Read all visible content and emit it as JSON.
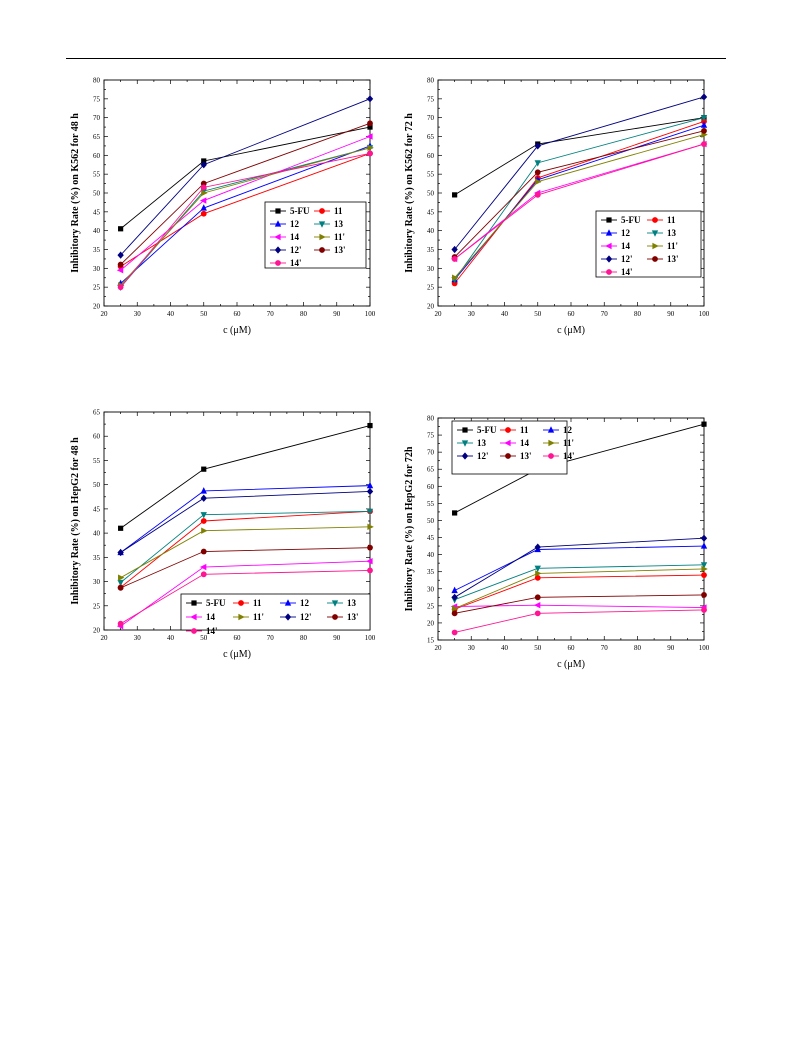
{
  "chart_data": [
    {
      "type": "line",
      "ylabel": "Inhibitory Rate (%) on K562 for 48 h",
      "xlabel": "c (μM)",
      "xlim": [
        20,
        100
      ],
      "ylim": [
        20,
        80
      ],
      "xticks": [
        20,
        30,
        40,
        50,
        60,
        70,
        80,
        90,
        100
      ],
      "yticks": [
        20,
        25,
        30,
        35,
        40,
        45,
        50,
        55,
        60,
        65,
        70,
        75,
        80
      ],
      "x": [
        25,
        50,
        100
      ],
      "legend_columns": 2,
      "series": [
        {
          "name": "5-FU",
          "color": "#000000",
          "marker": "square",
          "values": [
            40.5,
            58.5,
            67.5
          ]
        },
        {
          "name": "11",
          "color": "#ff0000",
          "marker": "circle",
          "values": [
            30.5,
            44.5,
            60.5
          ]
        },
        {
          "name": "12",
          "color": "#0000ff",
          "marker": "triangle-up",
          "values": [
            26.0,
            46.0,
            62.5
          ]
        },
        {
          "name": "13",
          "color": "#008080",
          "marker": "triangle-down",
          "values": [
            25.0,
            50.5,
            62.0
          ]
        },
        {
          "name": "14",
          "color": "#ff00ff",
          "marker": "triangle-left",
          "values": [
            29.5,
            48.0,
            65.0
          ]
        },
        {
          "name": "11'",
          "color": "#808000",
          "marker": "triangle-right",
          "values": [
            25.5,
            50.0,
            62.0
          ]
        },
        {
          "name": "12'",
          "color": "#000080",
          "marker": "diamond",
          "values": [
            33.5,
            57.5,
            75.0
          ]
        },
        {
          "name": "13'",
          "color": "#800000",
          "marker": "circle",
          "values": [
            31.0,
            52.5,
            68.5
          ]
        },
        {
          "name": "14'",
          "color": "#ff1493",
          "marker": "circle",
          "values": [
            25.0,
            51.5,
            60.5
          ]
        }
      ]
    },
    {
      "type": "line",
      "ylabel": "Inhibitory Rate (%) on K562 for 72 h",
      "xlabel": "c (μM)",
      "xlim": [
        20,
        100
      ],
      "ylim": [
        20,
        80
      ],
      "xticks": [
        20,
        30,
        40,
        50,
        60,
        70,
        80,
        90,
        100
      ],
      "yticks": [
        20,
        25,
        30,
        35,
        40,
        45,
        50,
        55,
        60,
        65,
        70,
        75,
        80
      ],
      "x": [
        25,
        50,
        100
      ],
      "legend_columns": 2,
      "series": [
        {
          "name": "5-FU",
          "color": "#000000",
          "marker": "square",
          "values": [
            49.5,
            63.0,
            70.0
          ]
        },
        {
          "name": "11",
          "color": "#ff0000",
          "marker": "circle",
          "values": [
            26.0,
            54.0,
            69.0
          ]
        },
        {
          "name": "12",
          "color": "#0000ff",
          "marker": "triangle-up",
          "values": [
            27.0,
            53.5,
            68.0
          ]
        },
        {
          "name": "13",
          "color": "#008080",
          "marker": "triangle-down",
          "values": [
            27.0,
            58.0,
            70.0
          ]
        },
        {
          "name": "14",
          "color": "#ff00ff",
          "marker": "triangle-left",
          "values": [
            32.5,
            50.0,
            63.0
          ]
        },
        {
          "name": "11'",
          "color": "#808000",
          "marker": "triangle-right",
          "values": [
            27.5,
            53.0,
            65.5
          ]
        },
        {
          "name": "12'",
          "color": "#000080",
          "marker": "diamond",
          "values": [
            35.0,
            62.5,
            75.5
          ]
        },
        {
          "name": "13'",
          "color": "#800000",
          "marker": "circle",
          "values": [
            33.0,
            55.5,
            66.5
          ]
        },
        {
          "name": "14'",
          "color": "#ff1493",
          "marker": "circle",
          "values": [
            32.5,
            49.5,
            63.0
          ]
        }
      ]
    },
    {
      "type": "line",
      "ylabel": "Inhibitory Rate (%) on HepG2 for 48 h",
      "xlabel": "c (μM)",
      "xlim": [
        20,
        100
      ],
      "ylim": [
        20,
        65
      ],
      "xticks": [
        20,
        30,
        40,
        50,
        60,
        70,
        80,
        90,
        100
      ],
      "yticks": [
        20,
        25,
        30,
        35,
        40,
        45,
        50,
        55,
        60,
        65
      ],
      "x": [
        25,
        50,
        100
      ],
      "legend_columns": 4,
      "series": [
        {
          "name": "5-FU",
          "color": "#000000",
          "marker": "square",
          "values": [
            41.0,
            53.2,
            62.2
          ]
        },
        {
          "name": "11",
          "color": "#ff0000",
          "marker": "circle",
          "values": [
            28.8,
            42.5,
            44.5
          ]
        },
        {
          "name": "12",
          "color": "#0000ff",
          "marker": "triangle-up",
          "values": [
            36.0,
            48.7,
            49.8
          ]
        },
        {
          "name": "13",
          "color": "#008080",
          "marker": "triangle-down",
          "values": [
            29.8,
            43.8,
            44.5
          ]
        },
        {
          "name": "14",
          "color": "#ff00ff",
          "marker": "triangle-left",
          "values": [
            20.8,
            33.0,
            34.2
          ]
        },
        {
          "name": "11'",
          "color": "#808000",
          "marker": "triangle-right",
          "values": [
            30.8,
            40.5,
            41.3
          ]
        },
        {
          "name": "12'",
          "color": "#000080",
          "marker": "diamond",
          "values": [
            36.0,
            47.2,
            48.6
          ]
        },
        {
          "name": "13'",
          "color": "#800000",
          "marker": "circle",
          "values": [
            28.7,
            36.2,
            37.0
          ]
        },
        {
          "name": "14'",
          "color": "#ff1493",
          "marker": "circle",
          "values": [
            21.3,
            31.5,
            32.3
          ]
        }
      ]
    },
    {
      "type": "line",
      "ylabel": "Inhibitory Rate (%) on HepG2 for 72h",
      "xlabel": "c (μM)",
      "xlim": [
        20,
        100
      ],
      "ylim": [
        15,
        80
      ],
      "xticks": [
        20,
        30,
        40,
        50,
        60,
        70,
        80,
        90,
        100
      ],
      "yticks": [
        15,
        20,
        25,
        30,
        35,
        40,
        45,
        50,
        55,
        60,
        65,
        70,
        75,
        80
      ],
      "x": [
        25,
        50,
        100
      ],
      "legend_columns": 3,
      "series": [
        {
          "name": "5-FU",
          "color": "#000000",
          "marker": "square",
          "values": [
            52.2,
            65.0,
            78.2
          ]
        },
        {
          "name": "11",
          "color": "#ff0000",
          "marker": "circle",
          "values": [
            24.0,
            33.2,
            34.0
          ]
        },
        {
          "name": "12",
          "color": "#0000ff",
          "marker": "triangle-up",
          "values": [
            29.5,
            41.5,
            42.5
          ]
        },
        {
          "name": "13",
          "color": "#008080",
          "marker": "triangle-down",
          "values": [
            26.8,
            36.0,
            37.0
          ]
        },
        {
          "name": "14",
          "color": "#ff00ff",
          "marker": "triangle-left",
          "values": [
            24.8,
            25.2,
            24.5
          ]
        },
        {
          "name": "11'",
          "color": "#808000",
          "marker": "triangle-right",
          "values": [
            24.2,
            34.5,
            35.8
          ]
        },
        {
          "name": "12'",
          "color": "#000080",
          "marker": "diamond",
          "values": [
            27.5,
            42.2,
            44.8
          ]
        },
        {
          "name": "13'",
          "color": "#800000",
          "marker": "circle",
          "values": [
            22.8,
            27.5,
            28.2
          ]
        },
        {
          "name": "14'",
          "color": "#ff1493",
          "marker": "circle",
          "values": [
            17.2,
            22.8,
            23.8
          ]
        }
      ]
    }
  ]
}
